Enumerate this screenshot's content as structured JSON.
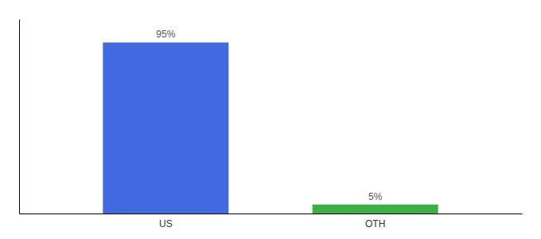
{
  "chart_data": {
    "type": "bar",
    "categories": [
      "US",
      "OTH"
    ],
    "values": [
      95,
      5
    ],
    "value_labels": [
      "95%",
      "5%"
    ],
    "colors": [
      "#4169e1",
      "#3cb043"
    ],
    "ylim": [
      0,
      108
    ],
    "data_labels": true,
    "tick_labels": "x"
  }
}
